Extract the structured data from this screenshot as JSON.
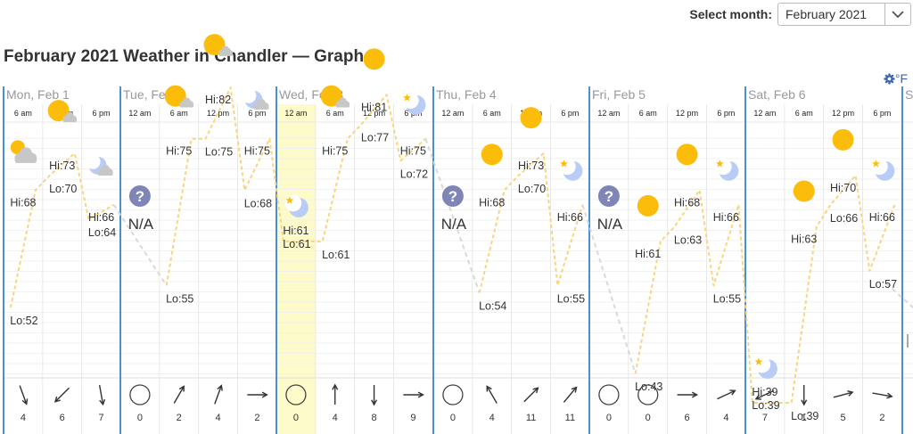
{
  "header": {
    "select_label": "Select month:",
    "selected_month": "February 2021",
    "title": "February 2021 Weather in Chandler — Graph",
    "units": "°F"
  },
  "chart_data": {
    "type": "line",
    "days": [
      {
        "label": "Mon, Feb 1"
      },
      {
        "label": "Tue, Feb 2"
      },
      {
        "label": "Wed, Feb 3"
      },
      {
        "label": "Thu, Feb 4"
      },
      {
        "label": "Fri, Feb 5"
      },
      {
        "label": "Sat, Feb 6"
      },
      {
        "label": "S"
      }
    ],
    "slots": [
      {
        "day": 0,
        "time": "6 am",
        "icon": "partly-cloudy",
        "hi": 68,
        "lo": 52,
        "wind_dir": 160,
        "wind": 4
      },
      {
        "day": 0,
        "time": "12 pm",
        "icon": "cloudy-sun",
        "hi": 73,
        "lo": 70,
        "wind_dir": 225,
        "wind": 6
      },
      {
        "day": 0,
        "time": "6 pm",
        "icon": "cloudy-moon",
        "hi": 66,
        "lo": 64,
        "wind_dir": 170,
        "wind": 7
      },
      {
        "day": 1,
        "time": "12 am",
        "icon": "unknown",
        "na": "N/A",
        "wind_dir": null,
        "wind": 0
      },
      {
        "day": 1,
        "time": "6 am",
        "icon": "cloudy-sun",
        "hi": 75,
        "lo": 55,
        "wind_dir": 30,
        "wind": 2
      },
      {
        "day": 1,
        "time": "12 pm",
        "icon": "cloudy-sun",
        "hi": 82,
        "lo": 75,
        "wind_dir": 20,
        "wind": 4
      },
      {
        "day": 1,
        "time": "6 pm",
        "icon": "cloudy-moon",
        "hi": 75,
        "lo": 68,
        "wind_dir": 90,
        "wind": 2
      },
      {
        "day": 2,
        "time": "12 am",
        "icon": "moon-star",
        "hi": 61,
        "lo": 61,
        "wind_dir": null,
        "wind": 0,
        "highlight": true
      },
      {
        "day": 2,
        "time": "6 am",
        "icon": "cloudy-sun",
        "hi": 75,
        "lo": 61,
        "wind_dir": 0,
        "wind": 4
      },
      {
        "day": 2,
        "time": "12 pm",
        "icon": "sun",
        "hi": 81,
        "lo": 77,
        "wind_dir": 180,
        "wind": 8
      },
      {
        "day": 2,
        "time": "6 pm",
        "icon": "moon-star",
        "hi": 75,
        "lo": 72,
        "wind_dir": 90,
        "wind": 9
      },
      {
        "day": 3,
        "time": "12 am",
        "icon": "unknown",
        "na": "N/A",
        "wind_dir": null,
        "wind": 0
      },
      {
        "day": 3,
        "time": "6 am",
        "icon": "sun",
        "hi": 68,
        "lo": 54,
        "wind_dir": 330,
        "wind": 4
      },
      {
        "day": 3,
        "time": "12 pm",
        "icon": "sun",
        "hi": 73,
        "lo": 70,
        "wind_dir": 45,
        "wind": 11
      },
      {
        "day": 3,
        "time": "6 pm",
        "icon": "moon-star",
        "hi": 66,
        "lo": 55,
        "wind_dir": 40,
        "wind": 11
      },
      {
        "day": 4,
        "time": "12 am",
        "icon": "unknown",
        "na": "N/A",
        "wind_dir": null,
        "wind": 0
      },
      {
        "day": 4,
        "time": "6 am",
        "icon": "sun",
        "hi": 61,
        "lo": 43,
        "wind_dir": null,
        "wind": 0
      },
      {
        "day": 4,
        "time": "12 pm",
        "icon": "sun",
        "hi": 68,
        "lo": 63,
        "wind_dir": 90,
        "wind": 6
      },
      {
        "day": 4,
        "time": "6 pm",
        "icon": "moon-star",
        "hi": 66,
        "lo": 55,
        "wind_dir": 65,
        "wind": 4
      },
      {
        "day": 5,
        "time": "12 am",
        "icon": "moon-star",
        "hi": 39,
        "lo": 39,
        "wind_dir": 245,
        "wind": 7
      },
      {
        "day": 5,
        "time": "6 am",
        "icon": "sun",
        "hi": 63,
        "lo": 39,
        "wind_dir": 180,
        "wind": 1
      },
      {
        "day": 5,
        "time": "12 pm",
        "icon": "sun",
        "hi": 70,
        "lo": 66,
        "wind_dir": 75,
        "wind": 5
      },
      {
        "day": 5,
        "time": "6 pm",
        "icon": "moon-star",
        "hi": 66,
        "lo": 57,
        "wind_dir": 100,
        "wind": 2
      }
    ],
    "colors": {
      "line": "#f8d57e",
      "gap_line": "#d9d9d9",
      "day_border": "#4a8fd6",
      "grid": "#e8e8e8",
      "highlight": "#fdfbc9",
      "sun": "#fcbc0a",
      "moon": "#b9ccf6",
      "cloud": "#c7c7c7",
      "unknown": "#7f86b6"
    }
  }
}
